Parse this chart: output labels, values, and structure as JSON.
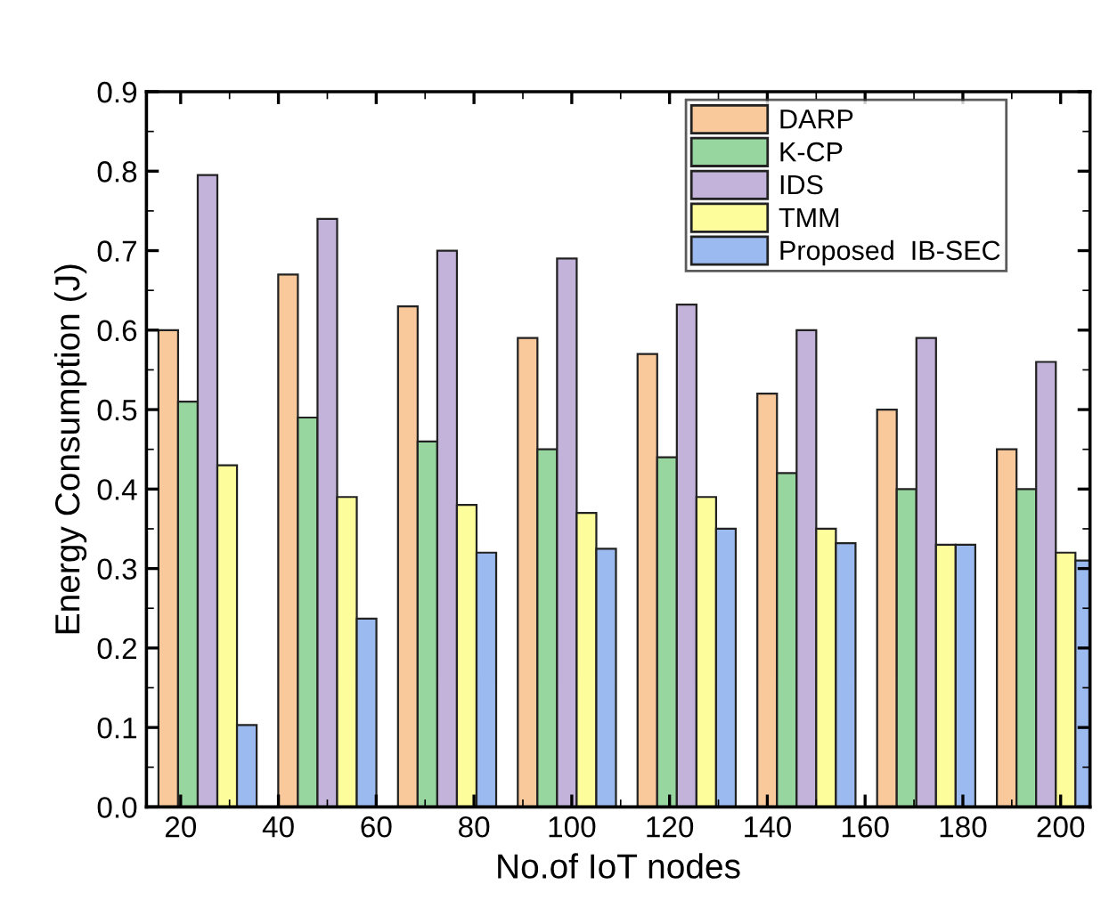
{
  "chart_data": {
    "type": "bar",
    "xlabel": "No.of IoT nodes",
    "ylabel": "Energy Consumption (J)",
    "x": [
      25.5,
      50,
      74.5,
      99,
      123.5,
      148,
      172.5,
      197
    ],
    "series": [
      {
        "name": "DARP",
        "color": "#f9c89b",
        "values": [
          0.6,
          0.67,
          0.63,
          0.59,
          0.57,
          0.52,
          0.5,
          0.45
        ]
      },
      {
        "name": "K-CP",
        "color": "#98d6a0",
        "values": [
          0.51,
          0.49,
          0.46,
          0.45,
          0.44,
          0.42,
          0.4,
          0.4
        ]
      },
      {
        "name": "IDS",
        "color": "#c3b2d9",
        "values": [
          0.795,
          0.74,
          0.7,
          0.69,
          0.632,
          0.6,
          0.59,
          0.56
        ]
      },
      {
        "name": "TMM",
        "color": "#fdfd9c",
        "values": [
          0.43,
          0.39,
          0.38,
          0.37,
          0.39,
          0.35,
          0.33,
          0.32
        ]
      },
      {
        "name": "Proposed  IB-SEC",
        "color": "#9bbbf0",
        "values": [
          0.103,
          0.237,
          0.32,
          0.325,
          0.35,
          0.332,
          0.33,
          0.31
        ]
      }
    ],
    "xlim": [
      13,
      206
    ],
    "xticks": [
      20,
      40,
      60,
      80,
      100,
      120,
      140,
      160,
      180,
      200
    ],
    "ylim": [
      0,
      0.9
    ],
    "yticks": [
      {
        "value": 0,
        "label": "0.0"
      },
      {
        "value": 0.1,
        "label": "0.1"
      },
      {
        "value": 0.2,
        "label": "0.2"
      },
      {
        "value": 0.3,
        "label": "0.3"
      },
      {
        "value": 0.4,
        "label": "0.4"
      },
      {
        "value": 0.5,
        "label": "0.5"
      },
      {
        "value": 0.6,
        "label": "0.6"
      },
      {
        "value": 0.7,
        "label": "0.7"
      },
      {
        "value": 0.8,
        "label": "0.8"
      },
      {
        "value": 0.9,
        "label": "0.9"
      }
    ],
    "legend": "top right",
    "grid": false
  }
}
